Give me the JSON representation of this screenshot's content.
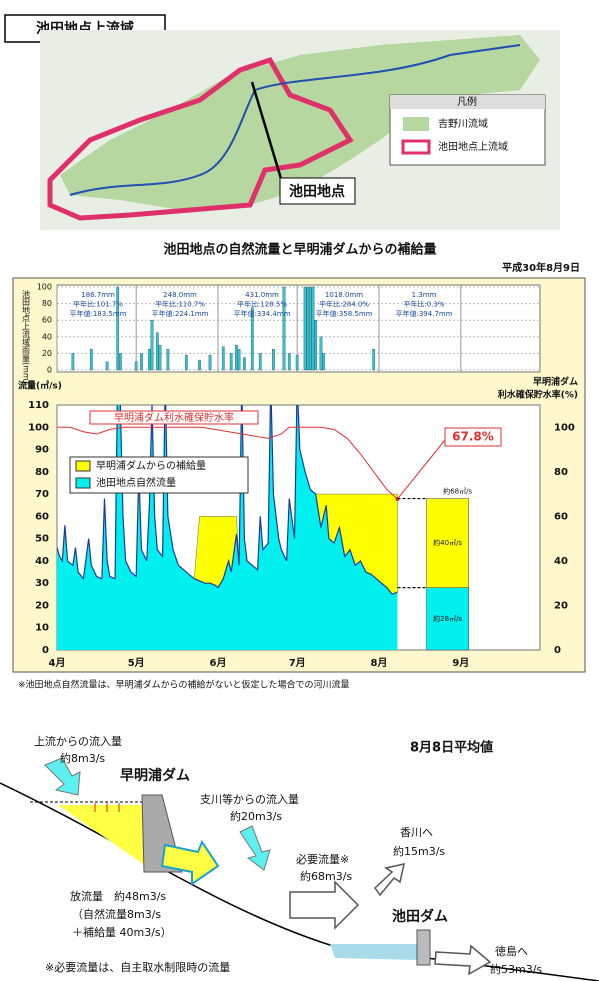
{
  "header": {
    "title": "池田地点上流域"
  },
  "map": {
    "legend_title": "凡例",
    "legend": [
      "吉野川流域",
      "池田地点上流域"
    ],
    "callout": "池田地点"
  },
  "figure": {
    "title": "池田地点の自然流量と早明浦ダムからの補給量",
    "date": "平成30年8月9日",
    "footnote": "※池田地点自然流量は、早明浦ダムからの補給がないと仮定した場合での河川流量"
  },
  "chart_data": [
    {
      "type": "bar",
      "y_label": "池田地点上流域雨量(mm)",
      "color": "#2fc4d4",
      "x": [
        6,
        13,
        19,
        23,
        24,
        30,
        32,
        35,
        36,
        38,
        39,
        42,
        49,
        54,
        58,
        63,
        66,
        68,
        69,
        71,
        74,
        77,
        82,
        86,
        88,
        91,
        94,
        95,
        96,
        97,
        98,
        100,
        101,
        120
      ],
      "values": [
        20,
        25,
        10,
        100,
        20,
        10,
        20,
        25,
        60,
        45,
        30,
        25,
        18,
        12,
        18,
        28,
        20,
        30,
        25,
        15,
        75,
        20,
        25,
        100,
        20,
        18,
        100,
        100,
        100,
        100,
        60,
        40,
        20,
        25
      ],
      "xlim": [
        0,
        183
      ],
      "ylim": [
        0,
        100
      ],
      "yticks": [
        0,
        20,
        40,
        60,
        80,
        100
      ],
      "grid": true,
      "monthly_notes": [
        {
          "total": "186.7mm",
          "ratio": "平年比:101.7%",
          "normal": "平年値:183.5mm"
        },
        {
          "total": "248.0mm",
          "ratio": "平年比:110.7%",
          "normal": "平年値:224.1mm"
        },
        {
          "total": "431.0mm",
          "ratio": "平年比:128.5%",
          "normal": "平年値:334.4mm"
        },
        {
          "total": "1018.0mm",
          "ratio": "平年比:284.0%",
          "normal": "平年値:358.5mm"
        },
        {
          "total": "1.3mm",
          "ratio": "平年比:0.3%",
          "normal": "平年値:394.7mm"
        }
      ]
    },
    {
      "type": "area",
      "y_label": "流量(㎥/s)",
      "y2_label": [
        "早明浦ダム",
        "利水確保貯水率(%)"
      ],
      "x": [
        0,
        1,
        2,
        3,
        4,
        6,
        7,
        8,
        10,
        12,
        13,
        15,
        17,
        18,
        19,
        20,
        22,
        23,
        24,
        25,
        26,
        28,
        30,
        31,
        32,
        34,
        35,
        36,
        37,
        38,
        40,
        41,
        42,
        44,
        46,
        48,
        50,
        52,
        54,
        56,
        58,
        60,
        61,
        63,
        65,
        66,
        68,
        69,
        70,
        71,
        72,
        74,
        76,
        77,
        78,
        80,
        81,
        82,
        84,
        85,
        87,
        88,
        90,
        91,
        92,
        94,
        96,
        98,
        100,
        102,
        103,
        105,
        107,
        109,
        111,
        113,
        115,
        117,
        119,
        121,
        123,
        125,
        127,
        129
      ],
      "xlim": [
        0,
        183
      ],
      "xticks": [
        {
          "value": 0,
          "label": "4月"
        },
        {
          "value": 30,
          "label": "5月"
        },
        {
          "value": 61,
          "label": "6月"
        },
        {
          "value": 91,
          "label": "7月"
        },
        {
          "value": 122,
          "label": "8月"
        },
        {
          "value": 153,
          "label": "9月"
        }
      ],
      "ylim": [
        0,
        110
      ],
      "yticks": [
        0,
        10,
        20,
        30,
        40,
        50,
        60,
        70,
        80,
        90,
        100,
        110
      ],
      "y2lim": [
        0,
        110
      ],
      "y2ticks": [
        0,
        20,
        40,
        60,
        80,
        100
      ],
      "legend": "upper-left",
      "series": [
        {
          "name": "早明浦ダムからの補給量",
          "color": "#ffff00",
          "values": [
            0,
            0,
            0,
            0,
            0,
            0,
            0,
            0,
            0,
            0,
            0,
            0,
            0,
            0,
            0,
            0,
            0,
            0,
            0,
            0,
            0,
            0,
            0,
            0,
            0,
            0,
            0,
            0,
            0,
            0,
            0,
            0,
            0,
            0,
            0,
            0,
            0,
            0,
            29,
            30,
            30,
            31,
            32,
            28,
            20,
            25,
            8,
            0,
            0,
            0,
            0,
            0,
            0,
            0,
            0,
            0,
            0,
            0,
            0,
            0,
            0,
            0,
            0,
            0,
            0,
            0,
            0,
            0,
            15,
            5,
            20,
            22,
            15,
            28,
            25,
            32,
            30,
            35,
            36,
            38,
            40,
            42,
            45,
            44
          ]
        },
        {
          "name": "池田地点自然流量",
          "color": "#00f0f0",
          "line_color": "#1a3a9a",
          "values": [
            46,
            42,
            40,
            56,
            40,
            38,
            46,
            35,
            32,
            50,
            38,
            33,
            32,
            68,
            40,
            33,
            32,
            125,
            110,
            60,
            40,
            35,
            33,
            80,
            45,
            40,
            65,
            110,
            60,
            45,
            42,
            120,
            60,
            45,
            38,
            36,
            34,
            32,
            31,
            30,
            30,
            29,
            28,
            32,
            40,
            35,
            52,
            38,
            120,
            50,
            40,
            38,
            36,
            60,
            45,
            48,
            120,
            70,
            50,
            45,
            40,
            68,
            50,
            120,
            90,
            80,
            72,
            70,
            55,
            65,
            50,
            48,
            55,
            42,
            45,
            38,
            40,
            35,
            34,
            32,
            30,
            28,
            25,
            26
          ]
        },
        {
          "name": "早明浦ダム利水確保貯水率",
          "color": "#e03030",
          "axis": "y2",
          "x": [
            0,
            5,
            10,
            15,
            20,
            25,
            30,
            40,
            50,
            55,
            60,
            65,
            70,
            75,
            80,
            85,
            88,
            95,
            100,
            105,
            110,
            115,
            120,
            125,
            129
          ],
          "values": [
            100,
            100,
            98,
            97,
            99,
            100,
            100,
            100,
            100,
            100,
            99,
            98,
            97,
            96,
            95,
            97,
            100,
            100,
            100,
            99,
            95,
            88,
            80,
            72,
            67.8
          ],
          "end_label": "67.8%"
        }
      ]
    },
    {
      "type": "bar",
      "series": [
        {
          "color": "#00f0f0",
          "values": [
            28
          ],
          "value_labels": [
            "約28㎥/s"
          ]
        },
        {
          "color": "#ffff00",
          "values": [
            40
          ],
          "value_labels": [
            "約40㎥/s"
          ]
        }
      ],
      "total_label": "約68㎥/s"
    }
  ],
  "diagram": {
    "inflow_upstream": "上流からの流入量",
    "inflow_upstream_value": "約8m3/s",
    "dam_upper": "早明浦ダム",
    "period": "8月8日平均値",
    "inflow_tributary": "支川等からの流入量",
    "inflow_tributary_value": "約20m3/s",
    "to_kagawa": "香川へ",
    "to_kagawa_value": "約15m3/s",
    "required": "必要流量※",
    "required_value": "約68m3/s",
    "dam_lower": "池田ダム",
    "release": "放流量　約48m3/s",
    "release_natural": "（自然流量8m3/s",
    "release_supply": "＋補給量 40m3/s）",
    "note": "※必要流量は、自主取水制限時の流量",
    "to_tokushima": "徳島へ",
    "to_tokushima_value": "約53m3/s"
  }
}
